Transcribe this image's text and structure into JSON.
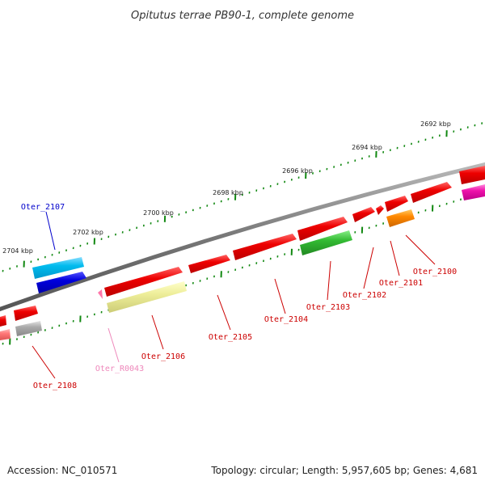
{
  "title": "Opitutus terrae PB90-1, complete genome",
  "footer": {
    "accession": "Accession: NC_010571",
    "topology": "Topology: circular; Length: 5,957,605 bp; Genes: 4,681"
  },
  "ticks": [
    "2692 kbp",
    "2694 kbp",
    "2696 kbp",
    "2698 kbp",
    "2700 kbp",
    "2702 kbp",
    "2704 kbp"
  ],
  "gene_labels": [
    {
      "text": "Oter_2107",
      "color": "#0000cc"
    },
    {
      "text": "Oter_2100",
      "color": "#cc0000"
    },
    {
      "text": "Oter_2101",
      "color": "#cc0000"
    },
    {
      "text": "Oter_2102",
      "color": "#cc0000"
    },
    {
      "text": "Oter_2103",
      "color": "#cc0000"
    },
    {
      "text": "Oter_2104",
      "color": "#cc0000"
    },
    {
      "text": "Oter_2105",
      "color": "#cc0000"
    },
    {
      "text": "Oter_2106",
      "color": "#cc0000"
    },
    {
      "text": "Oter_R0043",
      "color": "#ee88bb"
    },
    {
      "text": "Oter_2108",
      "color": "#cc0000"
    }
  ],
  "feature_colors": {
    "red": "#ee0000",
    "blue_dark": "#0000dd",
    "blue_light": "#00bbee",
    "green": "#33bb33",
    "yellow": "#eeee99",
    "orange": "#ff8800",
    "grey": "#aaaaaa",
    "magenta": "#ee11aa",
    "pink": "#ff77aa",
    "tick_green": "#118811"
  }
}
